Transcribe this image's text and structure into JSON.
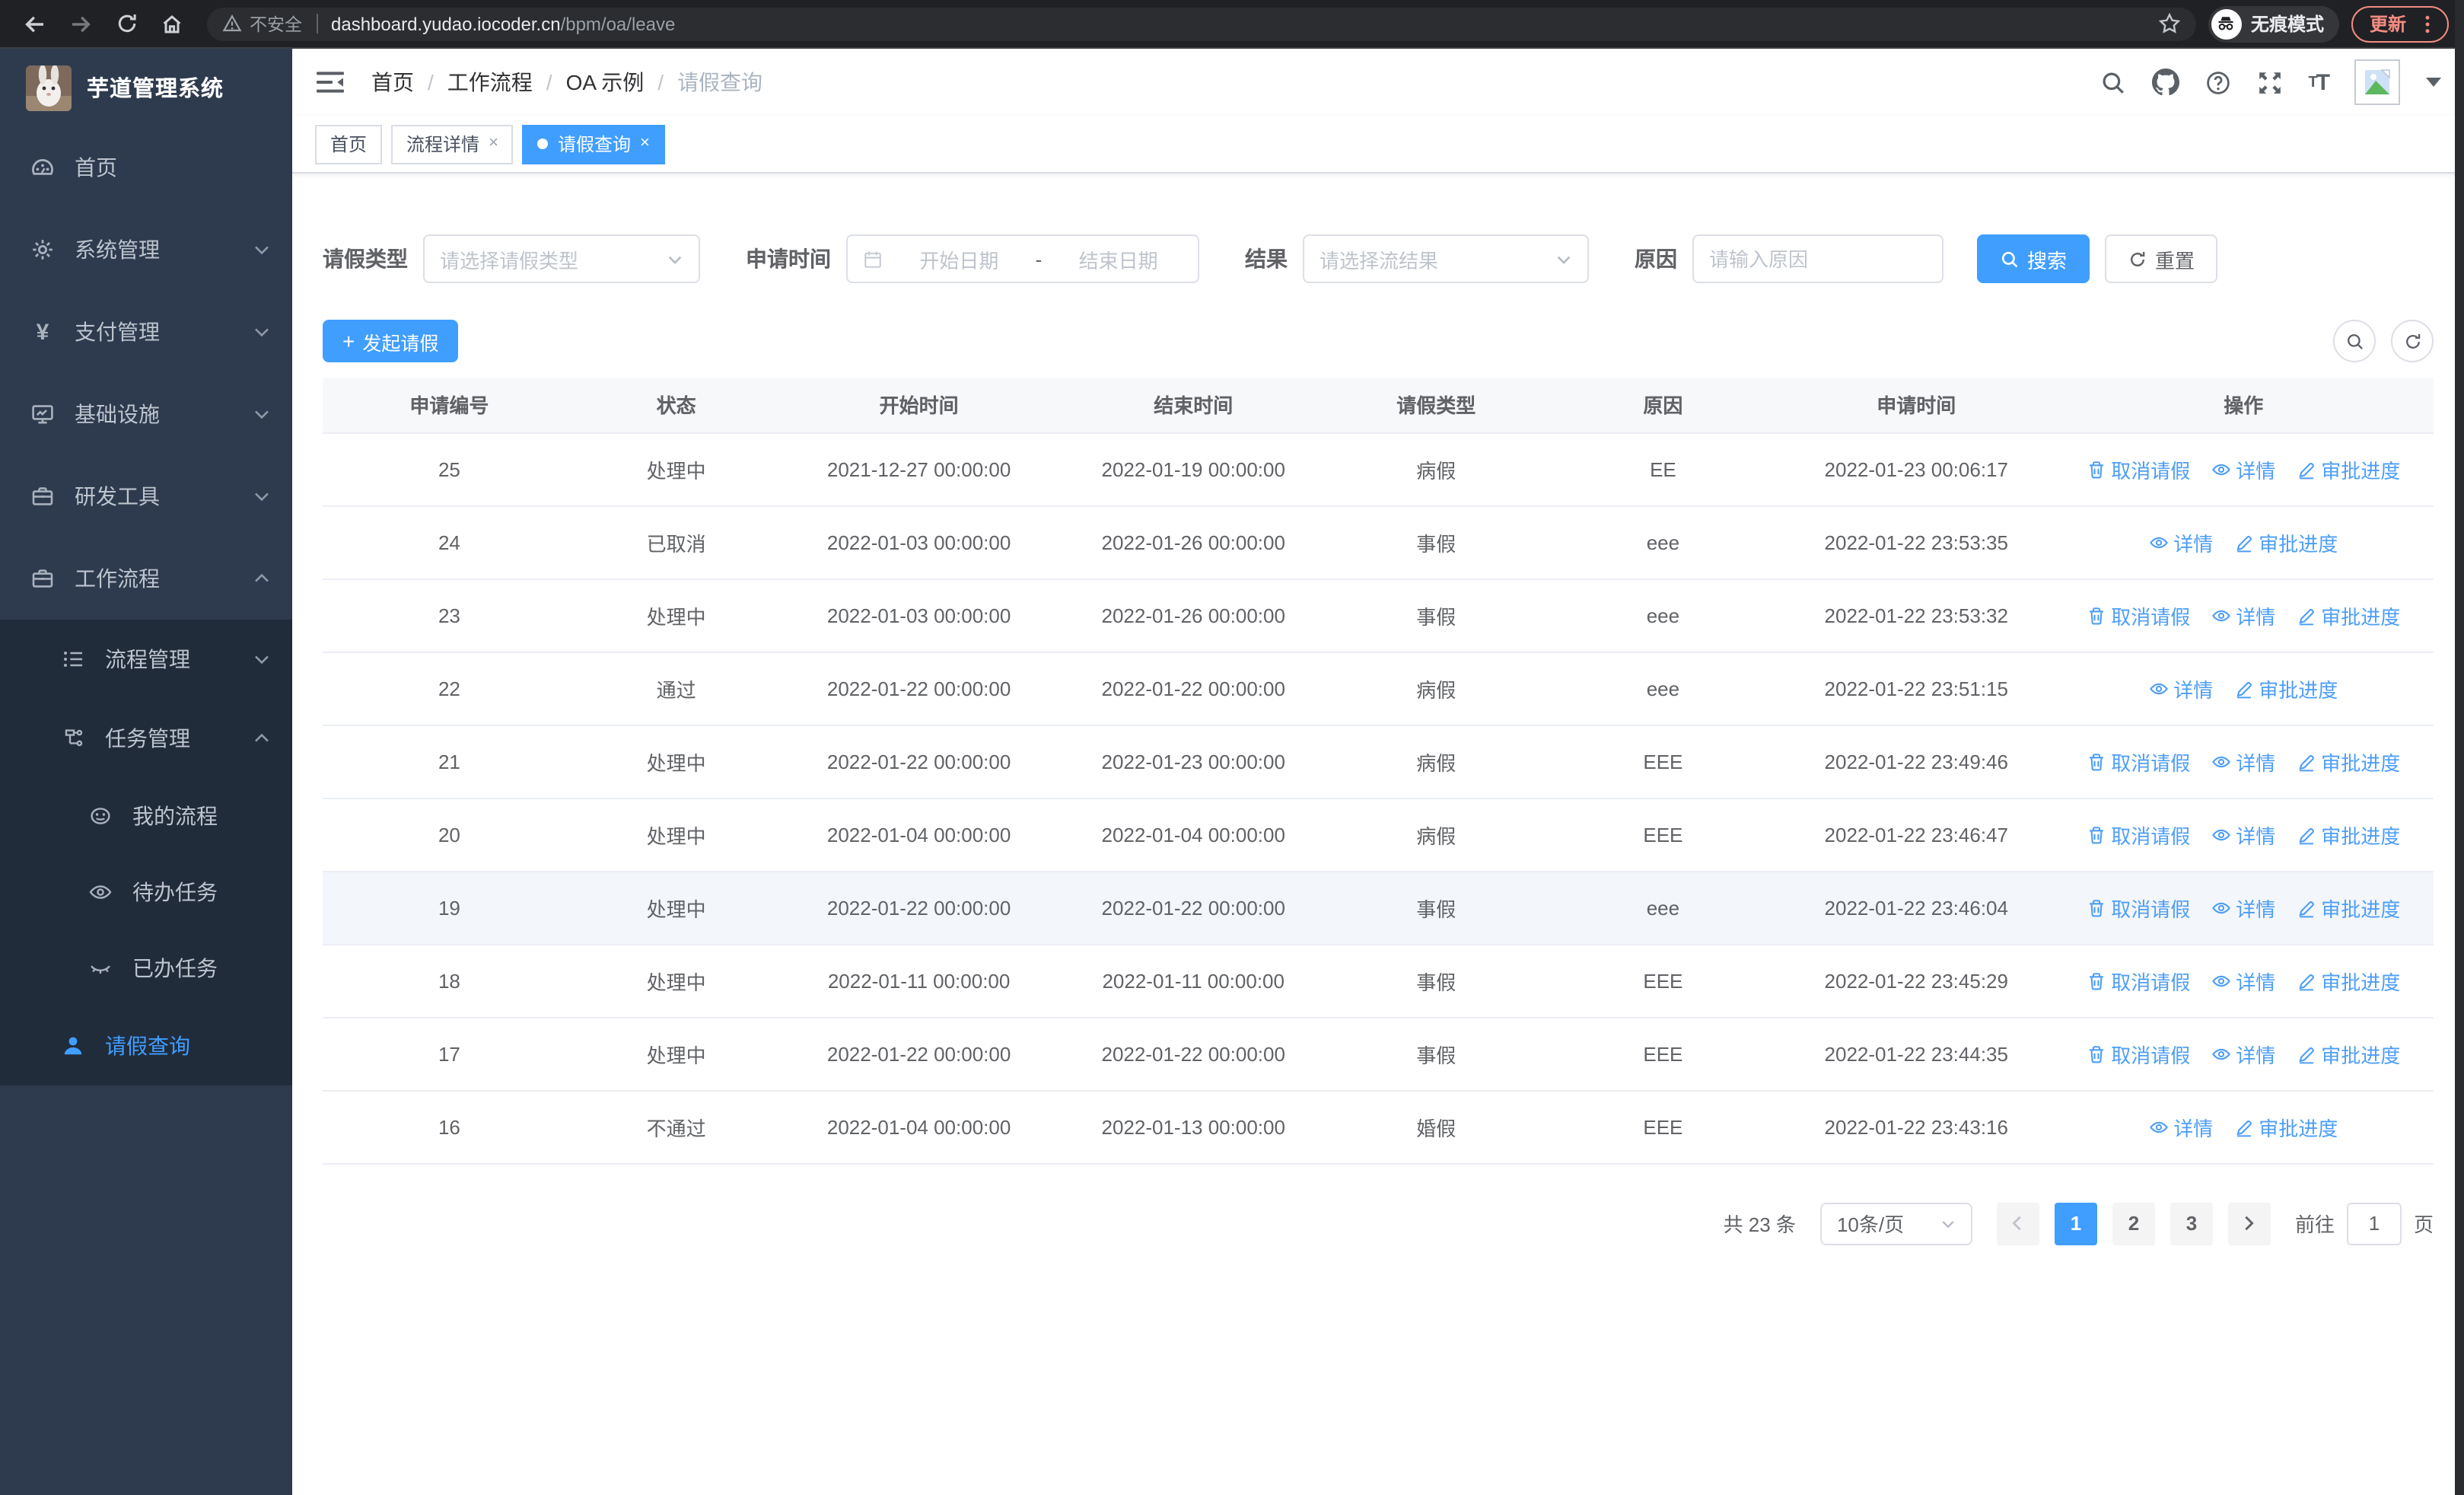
{
  "browser": {
    "security_text": "不安全",
    "url_host": "dashboard.yudao.iocoder.cn",
    "url_path": "/bpm/oa/leave",
    "incognito_label": "无痕模式",
    "update_label": "更新"
  },
  "sidebar": {
    "logo_title": "芋道管理系统",
    "menu": [
      {
        "label": "首页",
        "icon": "dashboard-icon"
      },
      {
        "label": "系统管理",
        "icon": "gear-icon",
        "chevron": "down"
      },
      {
        "label": "支付管理",
        "icon": "yen-icon",
        "chevron": "down"
      },
      {
        "label": "基础设施",
        "icon": "monitor-icon",
        "chevron": "down"
      },
      {
        "label": "研发工具",
        "icon": "toolbox-icon",
        "chevron": "down"
      },
      {
        "label": "工作流程",
        "icon": "briefcase-icon",
        "chevron": "up"
      }
    ],
    "submenu": [
      {
        "label": "流程管理",
        "icon": "list-tree-icon",
        "chevron": "down",
        "level": 1
      },
      {
        "label": "任务管理",
        "icon": "flow-icon",
        "chevron": "up",
        "level": 1
      },
      {
        "label": "我的流程",
        "icon": "face-icon",
        "level": 2
      },
      {
        "label": "待办任务",
        "icon": "eye-open-icon",
        "level": 2
      },
      {
        "label": "已办任务",
        "icon": "eye-closed-icon",
        "level": 2
      },
      {
        "label": "请假查询",
        "icon": "user-icon",
        "level": 1,
        "active": true
      }
    ]
  },
  "topbar": {
    "breadcrumb": [
      "首页",
      "工作流程",
      "OA 示例",
      "请假查询"
    ]
  },
  "tabs": [
    {
      "label": "首页",
      "closable": false,
      "active": false
    },
    {
      "label": "流程详情",
      "closable": true,
      "active": false
    },
    {
      "label": "请假查询",
      "closable": true,
      "active": true
    }
  ],
  "filters": {
    "leave_type_label": "请假类型",
    "leave_type_placeholder": "请选择请假类型",
    "apply_time_label": "申请时间",
    "start_placeholder": "开始日期",
    "range_separator": "-",
    "end_placeholder": "结束日期",
    "result_label": "结果",
    "result_placeholder": "请选择流结果",
    "reason_label": "原因",
    "reason_placeholder": "请输入原因",
    "search_label": "搜索",
    "reset_label": "重置"
  },
  "toolbar": {
    "create_label": "发起请假"
  },
  "table": {
    "columns": [
      "申请编号",
      "状态",
      "开始时间",
      "结束时间",
      "请假类型",
      "原因",
      "申请时间",
      "操作"
    ],
    "action_labels": {
      "cancel": "取消请假",
      "detail": "详情",
      "progress": "审批进度"
    },
    "rows": [
      {
        "id": "25",
        "status": "处理中",
        "start": "2021-12-27 00:00:00",
        "end": "2022-01-19 00:00:00",
        "type": "病假",
        "reason": "EE",
        "apply_time": "2022-01-23 00:06:17",
        "actions": [
          "cancel",
          "detail",
          "progress"
        ],
        "highlight": false
      },
      {
        "id": "24",
        "status": "已取消",
        "start": "2022-01-03 00:00:00",
        "end": "2022-01-26 00:00:00",
        "type": "事假",
        "reason": "eee",
        "apply_time": "2022-01-22 23:53:35",
        "actions": [
          "detail",
          "progress"
        ],
        "highlight": false
      },
      {
        "id": "23",
        "status": "处理中",
        "start": "2022-01-03 00:00:00",
        "end": "2022-01-26 00:00:00",
        "type": "事假",
        "reason": "eee",
        "apply_time": "2022-01-22 23:53:32",
        "actions": [
          "cancel",
          "detail",
          "progress"
        ],
        "highlight": false
      },
      {
        "id": "22",
        "status": "通过",
        "start": "2022-01-22 00:00:00",
        "end": "2022-01-22 00:00:00",
        "type": "病假",
        "reason": "eee",
        "apply_time": "2022-01-22 23:51:15",
        "actions": [
          "detail",
          "progress"
        ],
        "highlight": false
      },
      {
        "id": "21",
        "status": "处理中",
        "start": "2022-01-22 00:00:00",
        "end": "2022-01-23 00:00:00",
        "type": "病假",
        "reason": "EEE",
        "apply_time": "2022-01-22 23:49:46",
        "actions": [
          "cancel",
          "detail",
          "progress"
        ],
        "highlight": false
      },
      {
        "id": "20",
        "status": "处理中",
        "start": "2022-01-04 00:00:00",
        "end": "2022-01-04 00:00:00",
        "type": "病假",
        "reason": "EEE",
        "apply_time": "2022-01-22 23:46:47",
        "actions": [
          "cancel",
          "detail",
          "progress"
        ],
        "highlight": false
      },
      {
        "id": "19",
        "status": "处理中",
        "start": "2022-01-22 00:00:00",
        "end": "2022-01-22 00:00:00",
        "type": "事假",
        "reason": "eee",
        "apply_time": "2022-01-22 23:46:04",
        "actions": [
          "cancel",
          "detail",
          "progress"
        ],
        "highlight": true
      },
      {
        "id": "18",
        "status": "处理中",
        "start": "2022-01-11 00:00:00",
        "end": "2022-01-11 00:00:00",
        "type": "事假",
        "reason": "EEE",
        "apply_time": "2022-01-22 23:45:29",
        "actions": [
          "cancel",
          "detail",
          "progress"
        ],
        "highlight": false
      },
      {
        "id": "17",
        "status": "处理中",
        "start": "2022-01-22 00:00:00",
        "end": "2022-01-22 00:00:00",
        "type": "事假",
        "reason": "EEE",
        "apply_time": "2022-01-22 23:44:35",
        "actions": [
          "cancel",
          "detail",
          "progress"
        ],
        "highlight": false
      },
      {
        "id": "16",
        "status": "不通过",
        "start": "2022-01-04 00:00:00",
        "end": "2022-01-13 00:00:00",
        "type": "婚假",
        "reason": "EEE",
        "apply_time": "2022-01-22 23:43:16",
        "actions": [
          "detail",
          "progress"
        ],
        "highlight": false
      }
    ]
  },
  "pagination": {
    "total": "共 23 条",
    "page_size": "10条/页",
    "pages": [
      "1",
      "2",
      "3"
    ],
    "current": "1",
    "goto_label": "前往",
    "goto_value": "1",
    "unit_label": "页"
  },
  "colors": {
    "accent": "#409eff",
    "sidebar_bg": "#2e3b4e",
    "submenu_bg": "#212c3b",
    "link_blue": "#4d9ef7",
    "update_red": "#f28b82"
  }
}
